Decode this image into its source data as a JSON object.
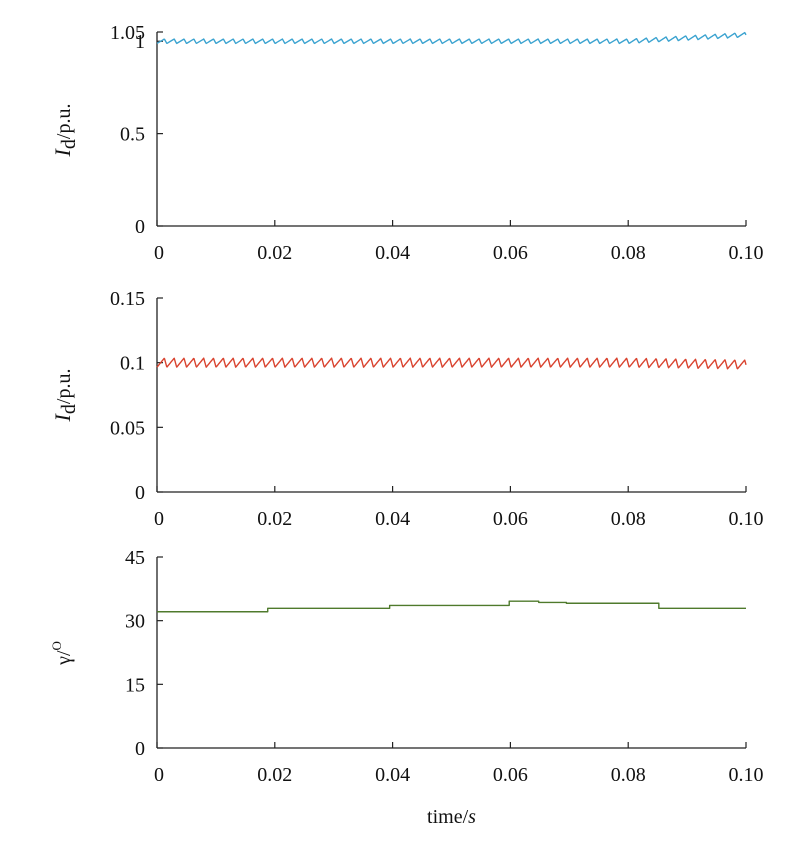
{
  "chart_data": [
    {
      "type": "line",
      "id": "id-current-1",
      "ylabel": {
        "main": "I",
        "sub": "d",
        "rest": "/p.u."
      },
      "xlim": [
        0,
        0.1
      ],
      "ylim": [
        0,
        1.05
      ],
      "x_ticks": [
        "0",
        "0.02",
        "0.04",
        "0.06",
        "0.08",
        "0.10"
      ],
      "y_ticks": [
        "0",
        "0.5",
        "1",
        "1.05"
      ],
      "y_tick_values": [
        0,
        0.5,
        1,
        1.05
      ],
      "color": "#3ba3d0",
      "series": [
        {
          "ripple": {
            "mean": 1.0,
            "amplitude": 0.012,
            "period": 0.00167,
            "trend_end": 1.035
          }
        }
      ]
    },
    {
      "type": "line",
      "id": "id-current-2",
      "ylabel": {
        "main": "I",
        "sub": "d",
        "rest": "/p.u."
      },
      "xlim": [
        0,
        0.1
      ],
      "ylim": [
        0,
        0.15
      ],
      "x_ticks": [
        "0",
        "0.02",
        "0.04",
        "0.06",
        "0.08",
        "0.10"
      ],
      "y_ticks": [
        "0",
        "0.05",
        "0.1",
        "0.15"
      ],
      "y_tick_values": [
        0,
        0.05,
        0.1,
        0.15
      ],
      "color": "#d9432f",
      "series": [
        {
          "ripple": {
            "mean": 0.1,
            "amplitude": 0.0035,
            "period": 0.00167,
            "trend_end": 0.0985
          }
        }
      ]
    },
    {
      "type": "line",
      "id": "gamma-angle",
      "ylabel": {
        "main": "γ/",
        "sup": "O"
      },
      "xlabel": {
        "main": "time/",
        "italic": "s"
      },
      "xlim": [
        0,
        0.1
      ],
      "ylim": [
        0,
        45
      ],
      "x_ticks": [
        "0",
        "0.02",
        "0.04",
        "0.06",
        "0.08",
        "0.10"
      ],
      "y_ticks": [
        "0",
        "15",
        "30",
        "45"
      ],
      "y_tick_values": [
        0,
        15,
        30,
        45
      ],
      "color": "#4f7a2c",
      "series": [
        {
          "steps": [
            {
              "x0": 0.0,
              "x1": 0.0188,
              "y": 32.1
            },
            {
              "x0": 0.0188,
              "x1": 0.0395,
              "y": 32.9
            },
            {
              "x0": 0.0395,
              "x1": 0.0598,
              "y": 33.6
            },
            {
              "x0": 0.0598,
              "x1": 0.0648,
              "y": 34.6
            },
            {
              "x0": 0.0648,
              "x1": 0.0695,
              "y": 34.3
            },
            {
              "x0": 0.0695,
              "x1": 0.0852,
              "y": 34.1
            },
            {
              "x0": 0.0852,
              "x1": 0.1,
              "y": 32.9
            }
          ]
        }
      ]
    }
  ]
}
